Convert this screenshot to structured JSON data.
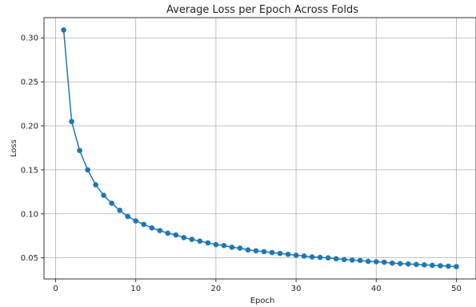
{
  "chart_data": {
    "type": "line",
    "title": "Average Loss per Epoch Across Folds",
    "xlabel": "Epoch",
    "ylabel": "Loss",
    "xlim": [
      -1.45,
      52.45
    ],
    "ylim": [
      0.026,
      0.323
    ],
    "xticks": [
      0,
      10,
      20,
      30,
      40,
      50
    ],
    "yticks": [
      0.05,
      0.1,
      0.15,
      0.2,
      0.25,
      0.3
    ],
    "ytick_labels": [
      "0.05",
      "0.10",
      "0.15",
      "0.20",
      "0.25",
      "0.30"
    ],
    "grid": true,
    "marker": "circle",
    "colors": {
      "line": "#1f77b4"
    },
    "x": [
      1,
      2,
      3,
      4,
      5,
      6,
      7,
      8,
      9,
      10,
      11,
      12,
      13,
      14,
      15,
      16,
      17,
      18,
      19,
      20,
      21,
      22,
      23,
      24,
      25,
      26,
      27,
      28,
      29,
      30,
      31,
      32,
      33,
      34,
      35,
      36,
      37,
      38,
      39,
      40,
      41,
      42,
      43,
      44,
      45,
      46,
      47,
      48,
      49,
      50
    ],
    "series": [
      {
        "values": [
          0.309,
          0.205,
          0.172,
          0.15,
          0.133,
          0.121,
          0.112,
          0.104,
          0.097,
          0.092,
          0.088,
          0.084,
          0.081,
          0.078,
          0.076,
          0.073,
          0.071,
          0.069,
          0.067,
          0.065,
          0.064,
          0.062,
          0.061,
          0.059,
          0.058,
          0.057,
          0.056,
          0.055,
          0.054,
          0.053,
          0.052,
          0.051,
          0.0505,
          0.05,
          0.049,
          0.048,
          0.0475,
          0.047,
          0.046,
          0.0455,
          0.045,
          0.044,
          0.0435,
          0.043,
          0.0425,
          0.042,
          0.0415,
          0.041,
          0.0405,
          0.04
        ]
      }
    ]
  }
}
